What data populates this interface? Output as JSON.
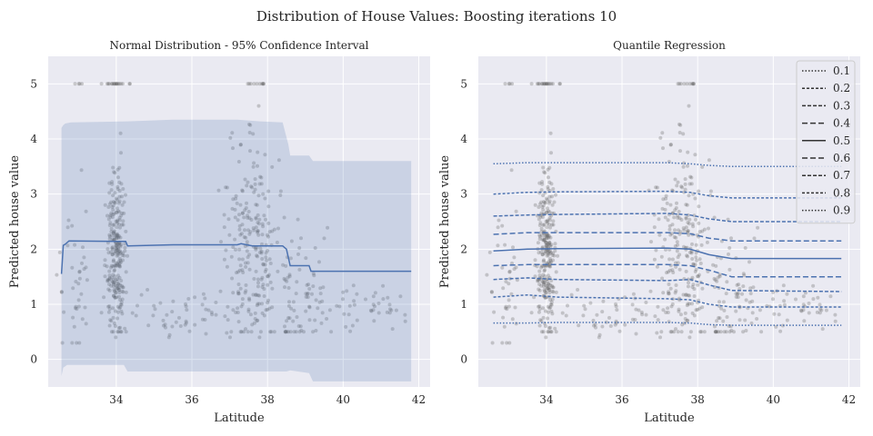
{
  "figure": {
    "title": "Distribution of House Values: Boosting iterations 10"
  },
  "colors": {
    "background": "#eaeaf2",
    "grid": "#ffffff",
    "line": "#4c72b0",
    "band": "#4c72b0",
    "points": "#555555"
  },
  "chart_data": [
    {
      "type": "line",
      "title": "Normal Distribution - 95% Confidence Interval",
      "xlabel": "Latitude",
      "ylabel": "Predicted house value",
      "xlim": [
        32.2,
        42.3
      ],
      "ylim": [
        -0.5,
        5.5
      ],
      "xticks": [
        34,
        36,
        38,
        40,
        42
      ],
      "yticks": [
        0,
        1,
        2,
        3,
        4,
        5
      ],
      "grid": true,
      "series": [
        {
          "role": "mean",
          "x": [
            32.55,
            32.6,
            32.65,
            32.75,
            34.25,
            34.3,
            35.5,
            37.2,
            37.3,
            37.6,
            38.4,
            38.5,
            38.6,
            39.1,
            39.15,
            41.8
          ],
          "y": [
            1.55,
            2.07,
            2.09,
            2.15,
            2.14,
            2.06,
            2.08,
            2.08,
            2.1,
            2.06,
            2.06,
            2.0,
            1.7,
            1.7,
            1.6,
            1.6
          ]
        },
        {
          "role": "upper-95",
          "x": [
            32.55,
            32.6,
            32.65,
            32.8,
            34.3,
            35.5,
            37.2,
            37.8,
            38.4,
            38.55,
            38.6,
            39.1,
            39.2,
            41.8
          ],
          "y": [
            4.2,
            4.25,
            4.28,
            4.3,
            4.32,
            4.35,
            4.35,
            4.32,
            4.3,
            3.9,
            3.7,
            3.7,
            3.6,
            3.6
          ]
        },
        {
          "role": "lower-95",
          "x": [
            32.55,
            32.6,
            32.7,
            34.2,
            34.3,
            37.3,
            37.8,
            38.5,
            38.6,
            39.1,
            39.2,
            41.8
          ],
          "y": [
            -0.3,
            -0.15,
            -0.1,
            -0.1,
            -0.22,
            -0.22,
            -0.22,
            -0.22,
            -0.2,
            -0.25,
            -0.4,
            -0.4
          ]
        }
      ]
    },
    {
      "type": "line",
      "title": "Quantile Regression",
      "xlabel": "Latitude",
      "ylabel": "Predicted house value",
      "xlim": [
        32.2,
        42.3
      ],
      "ylim": [
        -0.5,
        5.5
      ],
      "xticks": [
        34,
        36,
        38,
        40,
        42
      ],
      "yticks": [
        0,
        1,
        2,
        3,
        4,
        5
      ],
      "grid": true,
      "legend_position": "top-right",
      "x": [
        32.6,
        33.5,
        34.3,
        37.2,
        37.8,
        38.3,
        38.9,
        41.8
      ],
      "series": [
        {
          "name": "0.1",
          "dash": "1.5,2",
          "y": [
            0.66,
            0.66,
            0.67,
            0.67,
            0.66,
            0.63,
            0.62,
            0.62
          ]
        },
        {
          "name": "0.2",
          "dash": "3,2",
          "y": [
            1.13,
            1.17,
            1.13,
            1.1,
            1.08,
            1.0,
            0.95,
            0.95
          ]
        },
        {
          "name": "0.3",
          "dash": "4,2",
          "y": [
            1.45,
            1.48,
            1.45,
            1.43,
            1.45,
            1.35,
            1.25,
            1.23
          ]
        },
        {
          "name": "0.4",
          "dash": "6,3",
          "y": [
            1.7,
            1.72,
            1.72,
            1.72,
            1.7,
            1.62,
            1.5,
            1.5
          ]
        },
        {
          "name": "0.5",
          "dash": "",
          "y": [
            1.97,
            2.0,
            2.01,
            2.02,
            2.0,
            1.9,
            1.83,
            1.83
          ]
        },
        {
          "name": "0.6",
          "dash": "6,3",
          "y": [
            2.27,
            2.3,
            2.3,
            2.3,
            2.28,
            2.2,
            2.15,
            2.15
          ]
        },
        {
          "name": "0.7",
          "dash": "4,2",
          "y": [
            2.6,
            2.62,
            2.63,
            2.65,
            2.62,
            2.55,
            2.5,
            2.5
          ]
        },
        {
          "name": "0.8",
          "dash": "3,2",
          "y": [
            3.0,
            3.03,
            3.04,
            3.05,
            3.03,
            2.97,
            2.93,
            2.93
          ]
        },
        {
          "name": "0.9",
          "dash": "1.5,2",
          "y": [
            3.55,
            3.57,
            3.57,
            3.57,
            3.55,
            3.52,
            3.5,
            3.5
          ]
        }
      ]
    }
  ]
}
